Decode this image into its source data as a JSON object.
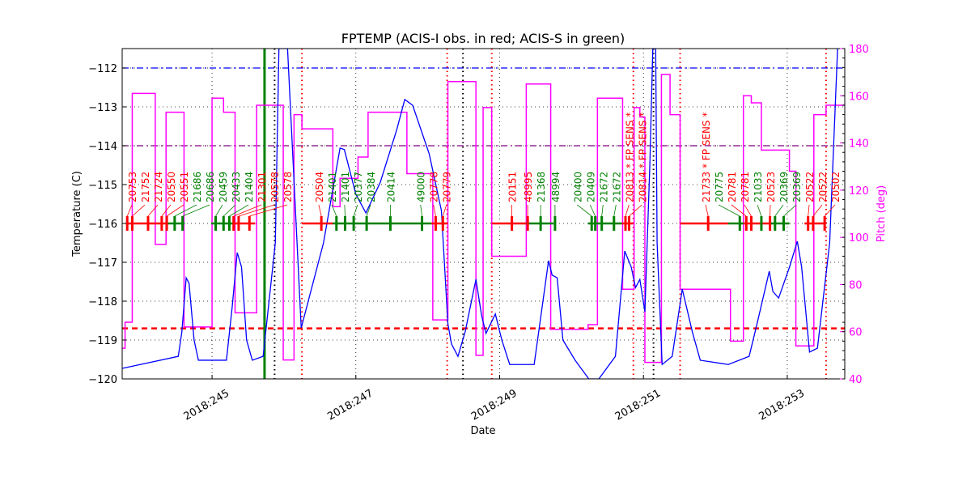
{
  "chart_data": {
    "type": "line",
    "title": "FPTEMP (ACIS-I obs. in red; ACIS-S in green)",
    "xlabel": "Date",
    "ylabel": "Temperature (C)",
    "y2label": "Pitch (deg)",
    "xlim": [
      243.75,
      253.8
    ],
    "ylim": [
      -120,
      -111.5
    ],
    "y2lim": [
      40,
      180
    ],
    "grid": true,
    "x_ticks": [
      {
        "v": 245,
        "label": "2018:245"
      },
      {
        "v": 247,
        "label": "2018:247"
      },
      {
        "v": 249,
        "label": "2018:249"
      },
      {
        "v": 251,
        "label": "2018:251"
      },
      {
        "v": 253,
        "label": "2018:253"
      }
    ],
    "y_ticks": [
      -120,
      -119,
      -118,
      -117,
      -116,
      -115,
      -114,
      -113,
      -112
    ],
    "y2_ticks": [
      40,
      60,
      80,
      100,
      120,
      140,
      160,
      180
    ],
    "colors": {
      "temp": "#0000ff",
      "pitch": "#ff00ff",
      "acis_i": "#ff0000",
      "acis_s": "#008000",
      "limit_blue": "#0000ff",
      "limit_purple": "#800080",
      "limit_red": "#ff0000",
      "y2axis": "#ff00ff"
    },
    "hlines": [
      {
        "y": -112,
        "color": "#0000ff",
        "style": "dashdot"
      },
      {
        "y": -114,
        "color": "#800080",
        "style": "dashdot"
      },
      {
        "y": -118.7,
        "color": "#ff0000",
        "style": "dashed"
      }
    ],
    "vlines": [
      {
        "x": 245.73,
        "color": "#008000",
        "style": "solid"
      },
      {
        "x": 245.87,
        "color": "#000000",
        "style": "dotted"
      },
      {
        "x": 248.49,
        "color": "#000000",
        "style": "dotted"
      },
      {
        "x": 251.14,
        "color": "#000000",
        "style": "dotted"
      },
      {
        "x": 246.25,
        "color": "#ff0000",
        "style": "dotted"
      },
      {
        "x": 248.27,
        "color": "#ff0000",
        "style": "dotted"
      },
      {
        "x": 248.89,
        "color": "#ff0000",
        "style": "dotted"
      },
      {
        "x": 250.86,
        "color": "#ff0000",
        "style": "dotted"
      },
      {
        "x": 251.51,
        "color": "#ff0000",
        "style": "dotted"
      },
      {
        "x": 253.54,
        "color": "#ff0000",
        "style": "dotted"
      }
    ],
    "series": [
      {
        "name": "FPTEMP",
        "axis": "left",
        "points": [
          [
            243.75,
            -119.73
          ],
          [
            244.53,
            -119.42
          ],
          [
            244.58,
            -118.79
          ],
          [
            244.64,
            -117.4
          ],
          [
            244.68,
            -117.54
          ],
          [
            244.75,
            -119.0
          ],
          [
            244.81,
            -119.52
          ],
          [
            245.2,
            -119.52
          ],
          [
            245.28,
            -118.15
          ],
          [
            245.35,
            -116.75
          ],
          [
            245.41,
            -117.12
          ],
          [
            245.48,
            -119.0
          ],
          [
            245.56,
            -119.52
          ],
          [
            245.71,
            -119.42
          ],
          [
            245.88,
            -116.5
          ],
          [
            245.93,
            -111.5
          ],
          [
            246.05,
            -111.5
          ],
          [
            246.24,
            -118.69
          ],
          [
            246.55,
            -116.5
          ],
          [
            246.78,
            -114.06
          ],
          [
            246.84,
            -114.1
          ],
          [
            247.0,
            -115.25
          ],
          [
            247.14,
            -115.73
          ],
          [
            247.34,
            -114.94
          ],
          [
            247.57,
            -113.58
          ],
          [
            247.68,
            -112.81
          ],
          [
            247.79,
            -112.96
          ],
          [
            248.02,
            -114.21
          ],
          [
            248.19,
            -115.67
          ],
          [
            248.28,
            -118.58
          ],
          [
            248.33,
            -119.1
          ],
          [
            248.42,
            -119.42
          ],
          [
            248.52,
            -118.79
          ],
          [
            248.67,
            -117.44
          ],
          [
            248.75,
            -118.38
          ],
          [
            248.81,
            -118.83
          ],
          [
            248.94,
            -118.33
          ],
          [
            249.03,
            -119.0
          ],
          [
            249.14,
            -119.63
          ],
          [
            249.48,
            -119.63
          ],
          [
            249.68,
            -116.96
          ],
          [
            249.73,
            -117.33
          ],
          [
            249.8,
            -117.4
          ],
          [
            249.88,
            -119.0
          ],
          [
            250.05,
            -119.52
          ],
          [
            250.24,
            -120.0
          ],
          [
            250.38,
            -120.0
          ],
          [
            250.61,
            -119.42
          ],
          [
            250.74,
            -116.71
          ],
          [
            250.83,
            -117.12
          ],
          [
            250.89,
            -117.65
          ],
          [
            250.95,
            -117.44
          ],
          [
            251.02,
            -118.27
          ],
          [
            251.09,
            -114.42
          ],
          [
            251.13,
            -111.5
          ],
          [
            251.17,
            -111.5
          ],
          [
            251.19,
            -116.5
          ],
          [
            251.26,
            -119.63
          ],
          [
            251.4,
            -119.42
          ],
          [
            251.54,
            -117.69
          ],
          [
            251.68,
            -118.79
          ],
          [
            251.79,
            -119.52
          ],
          [
            252.18,
            -119.63
          ],
          [
            252.47,
            -119.42
          ],
          [
            252.58,
            -118.58
          ],
          [
            252.75,
            -117.23
          ],
          [
            252.8,
            -117.75
          ],
          [
            252.88,
            -117.92
          ],
          [
            253.03,
            -117.13
          ],
          [
            253.14,
            -116.46
          ],
          [
            253.2,
            -117.12
          ],
          [
            253.31,
            -119.31
          ],
          [
            253.42,
            -119.21
          ],
          [
            253.59,
            -116.5
          ],
          [
            253.7,
            -111.5
          ]
        ]
      },
      {
        "name": "Pitch",
        "axis": "right",
        "step": true,
        "points": [
          [
            243.75,
            53
          ],
          [
            243.79,
            64
          ],
          [
            243.89,
            161
          ],
          [
            244.21,
            97
          ],
          [
            244.36,
            153
          ],
          [
            244.61,
            62
          ],
          [
            245.0,
            159
          ],
          [
            245.16,
            153
          ],
          [
            245.32,
            68
          ],
          [
            245.62,
            156
          ],
          [
            245.99,
            48
          ],
          [
            246.14,
            152
          ],
          [
            246.25,
            146
          ],
          [
            246.68,
            113
          ],
          [
            246.78,
            125
          ],
          [
            247.03,
            134
          ],
          [
            247.17,
            153
          ],
          [
            247.71,
            127
          ],
          [
            248.07,
            65
          ],
          [
            248.28,
            166
          ],
          [
            248.67,
            50
          ],
          [
            248.77,
            155
          ],
          [
            248.89,
            92
          ],
          [
            249.37,
            165
          ],
          [
            249.71,
            61
          ],
          [
            250.23,
            63
          ],
          [
            250.36,
            159
          ],
          [
            250.71,
            78
          ],
          [
            250.87,
            155
          ],
          [
            250.95,
            151
          ],
          [
            251.02,
            47
          ],
          [
            251.25,
            169
          ],
          [
            251.37,
            152
          ],
          [
            251.51,
            78
          ],
          [
            252.21,
            56
          ],
          [
            252.39,
            160
          ],
          [
            252.5,
            157
          ],
          [
            252.64,
            137
          ],
          [
            253.03,
            128
          ],
          [
            253.12,
            54
          ],
          [
            253.37,
            152
          ],
          [
            253.54,
            156
          ],
          [
            253.8,
            156
          ]
        ]
      }
    ],
    "obs_level": -116,
    "obs_segments": [
      {
        "instr": "ACIS-I",
        "range": [
          243.8,
          244.36
        ]
      },
      {
        "instr": "ACIS-I",
        "range": [
          245.29,
          245.6
        ]
      },
      {
        "instr": "ACIS-I",
        "range": [
          246.25,
          246.68
        ]
      },
      {
        "instr": "ACIS-I",
        "range": [
          248.05,
          248.28
        ]
      },
      {
        "instr": "ACIS-I",
        "range": [
          248.89,
          249.37
        ]
      },
      {
        "instr": "ACIS-I",
        "range": [
          250.7,
          250.86
        ]
      },
      {
        "instr": "ACIS-I",
        "range": [
          251.51,
          252.18
        ]
      },
      {
        "instr": "ACIS-I",
        "range": [
          252.39,
          252.77
        ]
      },
      {
        "instr": "ACIS-I",
        "range": [
          253.24,
          253.54
        ]
      },
      {
        "instr": "ACIS-S",
        "range": [
          244.36,
          244.62
        ]
      },
      {
        "instr": "ACIS-S",
        "range": [
          244.99,
          245.29
        ]
      },
      {
        "instr": "ACIS-S",
        "range": [
          246.68,
          248.05
        ]
      },
      {
        "instr": "ACIS-S",
        "range": [
          249.37,
          249.75
        ]
      },
      {
        "instr": "ACIS-S",
        "range": [
          250.23,
          250.7
        ]
      },
      {
        "instr": "ACIS-S",
        "range": [
          252.18,
          252.39
        ]
      },
      {
        "instr": "ACIS-S",
        "range": [
          252.77,
          253.03
        ]
      }
    ],
    "obs_labels": [
      {
        "x": 243.82,
        "text": "20753",
        "instr": "ACIS-I"
      },
      {
        "x": 243.89,
        "text": "21752",
        "instr": "ACIS-I"
      },
      {
        "x": 244.11,
        "text": "21724",
        "instr": "ACIS-I"
      },
      {
        "x": 244.3,
        "text": "20550",
        "instr": "ACIS-I"
      },
      {
        "x": 244.37,
        "text": "20551",
        "instr": "ACIS-I"
      },
      {
        "x": 244.48,
        "text": "21686",
        "instr": "ACIS-S"
      },
      {
        "x": 244.59,
        "text": "20686",
        "instr": "ACIS-S"
      },
      {
        "x": 245.05,
        "text": "20459",
        "instr": "ACIS-S"
      },
      {
        "x": 245.16,
        "text": "20433",
        "instr": "ACIS-S"
      },
      {
        "x": 245.24,
        "text": "21404",
        "instr": "ACIS-S"
      },
      {
        "x": 245.3,
        "text": "21301",
        "instr": "ACIS-I"
      },
      {
        "x": 245.37,
        "text": "20578",
        "instr": "ACIS-I"
      },
      {
        "x": 245.52,
        "text": "20578",
        "instr": "ACIS-I"
      },
      {
        "x": 246.52,
        "text": "20504",
        "instr": "ACIS-I"
      },
      {
        "x": 246.73,
        "text": "21401",
        "instr": "ACIS-S"
      },
      {
        "x": 246.85,
        "text": "21401",
        "instr": "ACIS-S"
      },
      {
        "x": 246.97,
        "text": "20377",
        "instr": "ACIS-S"
      },
      {
        "x": 247.15,
        "text": "20384",
        "instr": "ACIS-S"
      },
      {
        "x": 247.48,
        "text": "20414",
        "instr": "ACIS-S"
      },
      {
        "x": 247.92,
        "text": "49000",
        "instr": "ACIS-S"
      },
      {
        "x": 248.11,
        "text": "20778",
        "instr": "ACIS-I"
      },
      {
        "x": 248.21,
        "text": "20779",
        "instr": "ACIS-I"
      },
      {
        "x": 249.17,
        "text": "20151",
        "instr": "ACIS-I"
      },
      {
        "x": 249.39,
        "text": "48995",
        "instr": "ACIS-I"
      },
      {
        "x": 249.57,
        "text": "21368",
        "instr": "ACIS-S"
      },
      {
        "x": 249.77,
        "text": "48994",
        "instr": "ACIS-S"
      },
      {
        "x": 250.28,
        "text": "20400",
        "instr": "ACIS-S"
      },
      {
        "x": 250.33,
        "text": "20409",
        "instr": "ACIS-S"
      },
      {
        "x": 250.42,
        "text": "21672",
        "instr": "ACIS-S"
      },
      {
        "x": 250.59,
        "text": "21672",
        "instr": "ACIS-S"
      },
      {
        "x": 250.75,
        "text": "20813 * FP SENS *",
        "instr": "ACIS-I"
      },
      {
        "x": 250.8,
        "text": "20814 * FP SENS *",
        "instr": "ACIS-I"
      },
      {
        "x": 251.9,
        "text": "21733 * FP SENS *",
        "instr": "ACIS-I"
      },
      {
        "x": 252.34,
        "text": "20775",
        "instr": "ACIS-S"
      },
      {
        "x": 252.43,
        "text": "20781",
        "instr": "ACIS-I"
      },
      {
        "x": 252.5,
        "text": "20781",
        "instr": "ACIS-I"
      },
      {
        "x": 252.64,
        "text": "21033",
        "instr": "ACIS-S"
      },
      {
        "x": 252.76,
        "text": "20523",
        "instr": "ACIS-I"
      },
      {
        "x": 252.83,
        "text": "20369",
        "instr": "ACIS-S"
      },
      {
        "x": 252.95,
        "text": "20369",
        "instr": "ACIS-S"
      },
      {
        "x": 253.29,
        "text": "20522",
        "instr": "ACIS-I"
      },
      {
        "x": 253.36,
        "text": "20522",
        "instr": "ACIS-I"
      },
      {
        "x": 253.52,
        "text": "20502",
        "instr": "ACIS-I"
      }
    ]
  }
}
